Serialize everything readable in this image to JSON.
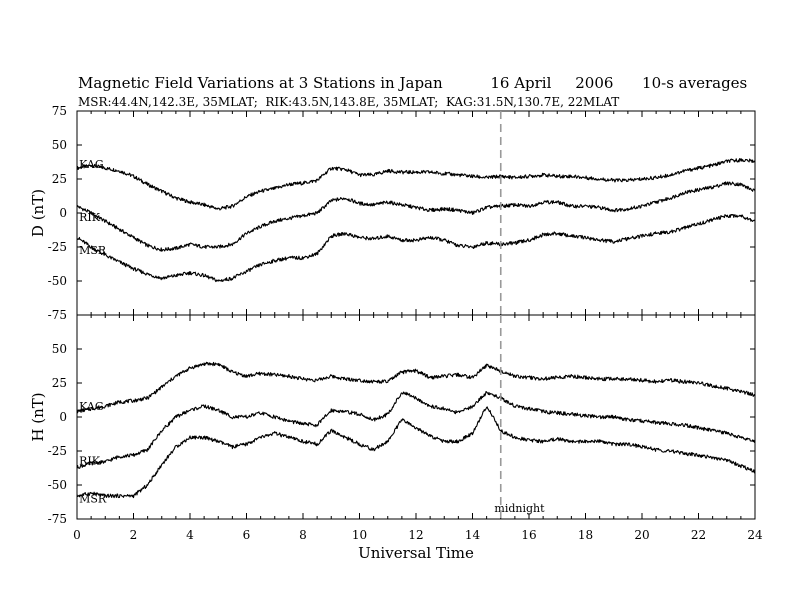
{
  "title": {
    "main": "Magnetic Field Variations at 3 Stations in Japan",
    "date": "16 April",
    "year": "2006",
    "averaging": "10-s averages"
  },
  "subtitle": "MSR:44.4N,142.3E, 35MLAT;  RIK:43.5N,143.8E, 35MLAT;  KAG:31.5N,130.7E, 22MLAT",
  "colors": {
    "trace": "#000000",
    "midnight_line": "#999999"
  },
  "chart_data": [
    {
      "type": "line",
      "panel": "top",
      "ylabel": "D (nT)",
      "ylim": [
        -75,
        75
      ],
      "yticks": [
        75,
        50,
        25,
        0,
        -25,
        -50,
        -75
      ],
      "xlim": [
        0,
        24
      ],
      "x": [
        0,
        0.5,
        1,
        1.5,
        2,
        2.5,
        3,
        3.5,
        4,
        4.5,
        5,
        5.5,
        6,
        6.5,
        7,
        7.5,
        8,
        8.5,
        9,
        9.5,
        10,
        10.5,
        11,
        11.5,
        12,
        12.5,
        13,
        13.5,
        14,
        14.5,
        15,
        15.5,
        16,
        16.5,
        17,
        17.5,
        18,
        18.5,
        19,
        19.5,
        20,
        20.5,
        21,
        21.5,
        22,
        22.5,
        23,
        23.5,
        24
      ],
      "series": [
        {
          "name": "KAG",
          "values": [
            33,
            35,
            33,
            31,
            27,
            21,
            16,
            11,
            8,
            6,
            3,
            5,
            12,
            16,
            18,
            21,
            22,
            24,
            33,
            32,
            28,
            28,
            31,
            30,
            30,
            30,
            29,
            28,
            27,
            26,
            27,
            26,
            27,
            28,
            27,
            27,
            26,
            25,
            24,
            24,
            25,
            26,
            28,
            31,
            33,
            35,
            38,
            39,
            38
          ]
        },
        {
          "name": "RIK",
          "values": [
            5,
            0,
            -6,
            -12,
            -18,
            -24,
            -27,
            -26,
            -23,
            -25,
            -25,
            -23,
            -15,
            -10,
            -6,
            -4,
            -2,
            0,
            9,
            11,
            7,
            6,
            8,
            6,
            4,
            2,
            3,
            2,
            0,
            4,
            5,
            6,
            5,
            8,
            8,
            5,
            5,
            4,
            2,
            3,
            5,
            8,
            11,
            15,
            17,
            19,
            22,
            21,
            16
          ]
        },
        {
          "name": "MSR",
          "values": [
            -18,
            -25,
            -31,
            -36,
            -41,
            -45,
            -48,
            -46,
            -44,
            -46,
            -50,
            -48,
            -43,
            -38,
            -35,
            -33,
            -33,
            -30,
            -17,
            -15,
            -18,
            -19,
            -17,
            -20,
            -20,
            -18,
            -20,
            -24,
            -25,
            -22,
            -23,
            -22,
            -20,
            -16,
            -15,
            -17,
            -18,
            -20,
            -21,
            -19,
            -17,
            -15,
            -14,
            -11,
            -8,
            -5,
            -2,
            -2,
            -6
          ]
        }
      ],
      "annotations": [
        {
          "text": "KAG",
          "x": 0.5,
          "y": 33
        },
        {
          "text": "RIK",
          "x": 0.5,
          "y": -6
        },
        {
          "text": "MSR",
          "x": 0.5,
          "y": -30
        }
      ]
    },
    {
      "type": "line",
      "panel": "bottom",
      "ylabel": "H (nT)",
      "xlabel": "Universal Time",
      "ylim": [
        -75,
        75
      ],
      "yticks": [
        50,
        25,
        0,
        -25,
        -50,
        -75
      ],
      "xlim": [
        0,
        24
      ],
      "xticks": [
        0,
        2,
        4,
        6,
        8,
        10,
        12,
        14,
        16,
        18,
        20,
        22,
        24
      ],
      "x": [
        0,
        0.5,
        1,
        1.5,
        2,
        2.5,
        3,
        3.5,
        4,
        4.5,
        5,
        5.5,
        6,
        6.5,
        7,
        7.5,
        8,
        8.5,
        9,
        9.5,
        10,
        10.5,
        11,
        11.5,
        12,
        12.5,
        13,
        13.5,
        14,
        14.5,
        15,
        15.5,
        16,
        16.5,
        17,
        17.5,
        18,
        18.5,
        19,
        19.5,
        20,
        20.5,
        21,
        21.5,
        22,
        22.5,
        23,
        23.5,
        24
      ],
      "series": [
        {
          "name": "KAG",
          "values": [
            4,
            6,
            8,
            11,
            12,
            14,
            22,
            30,
            36,
            39,
            39,
            33,
            30,
            32,
            31,
            30,
            28,
            27,
            30,
            28,
            27,
            26,
            26,
            33,
            34,
            29,
            30,
            31,
            29,
            38,
            34,
            30,
            29,
            28,
            29,
            30,
            29,
            28,
            28,
            28,
            27,
            26,
            27,
            26,
            25,
            23,
            21,
            19,
            16
          ]
        },
        {
          "name": "RIK",
          "values": [
            -37,
            -34,
            -33,
            -29,
            -28,
            -24,
            -10,
            0,
            5,
            8,
            5,
            0,
            0,
            3,
            0,
            -3,
            -5,
            -6,
            5,
            4,
            2,
            -2,
            2,
            18,
            14,
            8,
            6,
            3,
            8,
            18,
            14,
            8,
            6,
            4,
            3,
            2,
            1,
            0,
            0,
            -2,
            -3,
            -4,
            -5,
            -6,
            -8,
            -10,
            -12,
            -15,
            -18
          ]
        },
        {
          "name": "MSR",
          "values": [
            -58,
            -56,
            -58,
            -58,
            -58,
            -50,
            -35,
            -22,
            -15,
            -15,
            -18,
            -22,
            -20,
            -15,
            -12,
            -15,
            -18,
            -20,
            -10,
            -15,
            -20,
            -24,
            -18,
            -2,
            -8,
            -14,
            -18,
            -18,
            -12,
            8,
            -10,
            -15,
            -17,
            -18,
            -16,
            -18,
            -18,
            -18,
            -20,
            -20,
            -22,
            -24,
            -25,
            -27,
            -28,
            -30,
            -32,
            -36,
            -40
          ]
        }
      ],
      "annotations": [
        {
          "text": "KAG",
          "x": 0.5,
          "y": 5
        },
        {
          "text": "RIK",
          "x": 0.5,
          "y": -35
        },
        {
          "text": "MSR",
          "x": 0.5,
          "y": -63
        },
        {
          "text": "midnight",
          "x": 15.2,
          "y": -70
        }
      ]
    }
  ]
}
